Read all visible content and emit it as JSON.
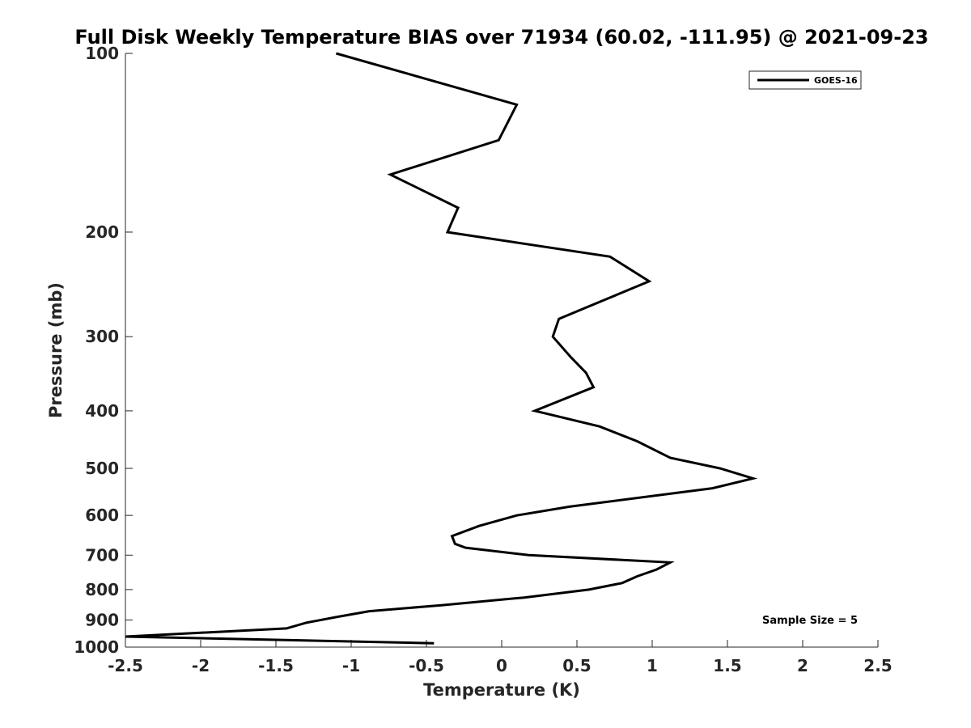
{
  "chart_data": {
    "type": "line",
    "title": "Full Disk Weekly Temperature BIAS over 71934 (60.02, -111.95) @ 2021-09-23",
    "xlabel": "Temperature (K)",
    "ylabel": "Pressure (mb)",
    "xlim": [
      -2.5,
      2.5
    ],
    "ylim": [
      100,
      1000
    ],
    "y_scale": "log",
    "y_reversed": true,
    "grid": false,
    "x_ticks": [
      -2.5,
      -2,
      -1.5,
      -1,
      -0.5,
      0,
      0.5,
      1,
      1.5,
      2,
      2.5
    ],
    "x_tick_labels": [
      "-2.5",
      "-2",
      "-1.5",
      "-1",
      "-0.5",
      "0",
      "0.5",
      "1",
      "1.5",
      "2",
      "2.5"
    ],
    "y_ticks": [
      100,
      200,
      300,
      400,
      500,
      600,
      700,
      800,
      900,
      1000
    ],
    "y_tick_labels": [
      "100",
      "200",
      "300",
      "400",
      "500",
      "600",
      "700",
      "800",
      "900",
      "1000"
    ],
    "legend": {
      "position": "top-right",
      "entries": [
        "GOES-16"
      ]
    },
    "annotation": "Sample Size = 5",
    "line_color": "#000000",
    "series": [
      {
        "name": "GOES-16",
        "x": [
          -1.1,
          0.1,
          -0.02,
          -0.74,
          -0.29,
          -0.36,
          0.72,
          0.98,
          0.38,
          0.34,
          0.46,
          0.56,
          0.61,
          0.22,
          0.65,
          0.9,
          1.12,
          1.45,
          1.67,
          1.4,
          0.45,
          0.1,
          -0.15,
          -0.33,
          -0.31,
          -0.24,
          0.18,
          1.12,
          1.03,
          0.9,
          0.8,
          0.58,
          0.15,
          -0.4,
          -0.88,
          -1.1,
          -1.3,
          -1.43,
          -2.5,
          -0.45
        ],
        "y": [
          100,
          122,
          140,
          160,
          182,
          200,
          220,
          242,
          280,
          300,
          325,
          345,
          365,
          400,
          425,
          450,
          480,
          500,
          520,
          540,
          580,
          600,
          625,
          650,
          670,
          680,
          700,
          720,
          740,
          760,
          780,
          800,
          825,
          850,
          870,
          890,
          910,
          930,
          960,
          985
        ]
      }
    ]
  }
}
